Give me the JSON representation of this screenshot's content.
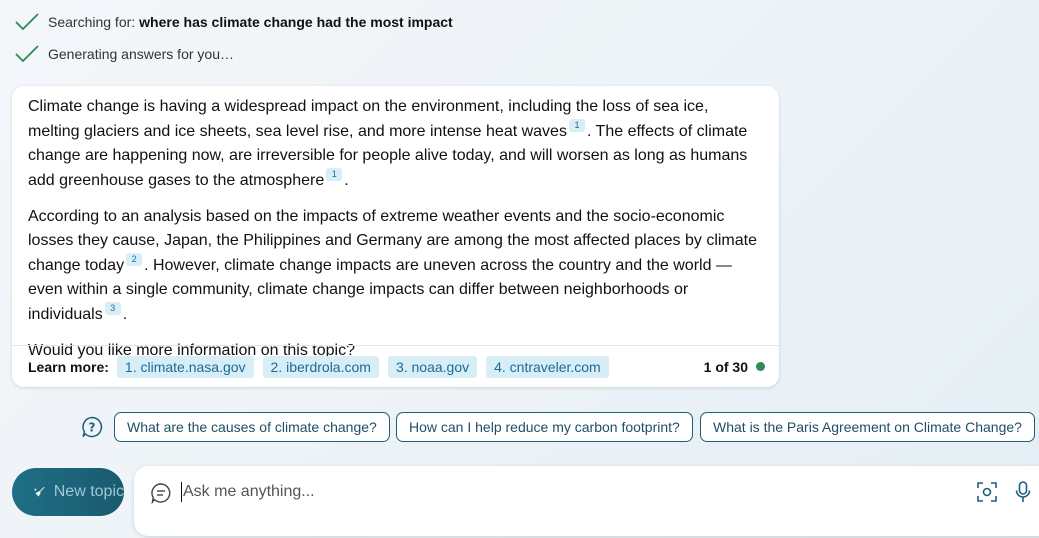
{
  "status": {
    "searching_prefix": "Searching for:",
    "searching_query": "where has climate change had the most impact",
    "generating": "Generating answers for you…"
  },
  "answer": {
    "p1_a": "Climate change is having a widespread impact on the environment, including the loss of sea ice, melting glaciers and ice sheets, sea level rise, and more intense heat waves",
    "p1_cite1": "1",
    "p1_b": ". The effects of climate change are happening now, are irreversible for people alive today, and will worsen as long as humans add greenhouse gases to the atmosphere",
    "p1_cite2": "1",
    "p1_c": ".",
    "p2_a": "According to an analysis based on the impacts of extreme weather events and the socio-economic losses they cause, Japan, the Philippines and Germany are among the most affected places by climate change today",
    "p2_cite1": "2",
    "p2_b": ". However, climate change impacts are uneven across the country and the world — even within a single community, climate change impacts can differ between neighborhoods or individuals",
    "p2_cite2": "3",
    "p2_c": ".",
    "p3": "Would you like more information on this topic?"
  },
  "learn_more": {
    "label": "Learn more:",
    "sources": [
      "1. climate.nasa.gov",
      "2. iberdrola.com",
      "3. noaa.gov",
      "4. cntraveler.com"
    ],
    "page_count": "1 of 30",
    "status_color": "#2e8b57"
  },
  "suggestions": [
    "What are the causes of climate change?",
    "How can I help reduce my carbon footprint?",
    "What is the Paris Agreement on Climate Change?"
  ],
  "new_topic": {
    "label": "New topic"
  },
  "input": {
    "placeholder": "Ask me anything..."
  },
  "colors": {
    "accent": "#1f6f86",
    "citation_bg": "#d8eef7",
    "check": "#2e8b57"
  }
}
